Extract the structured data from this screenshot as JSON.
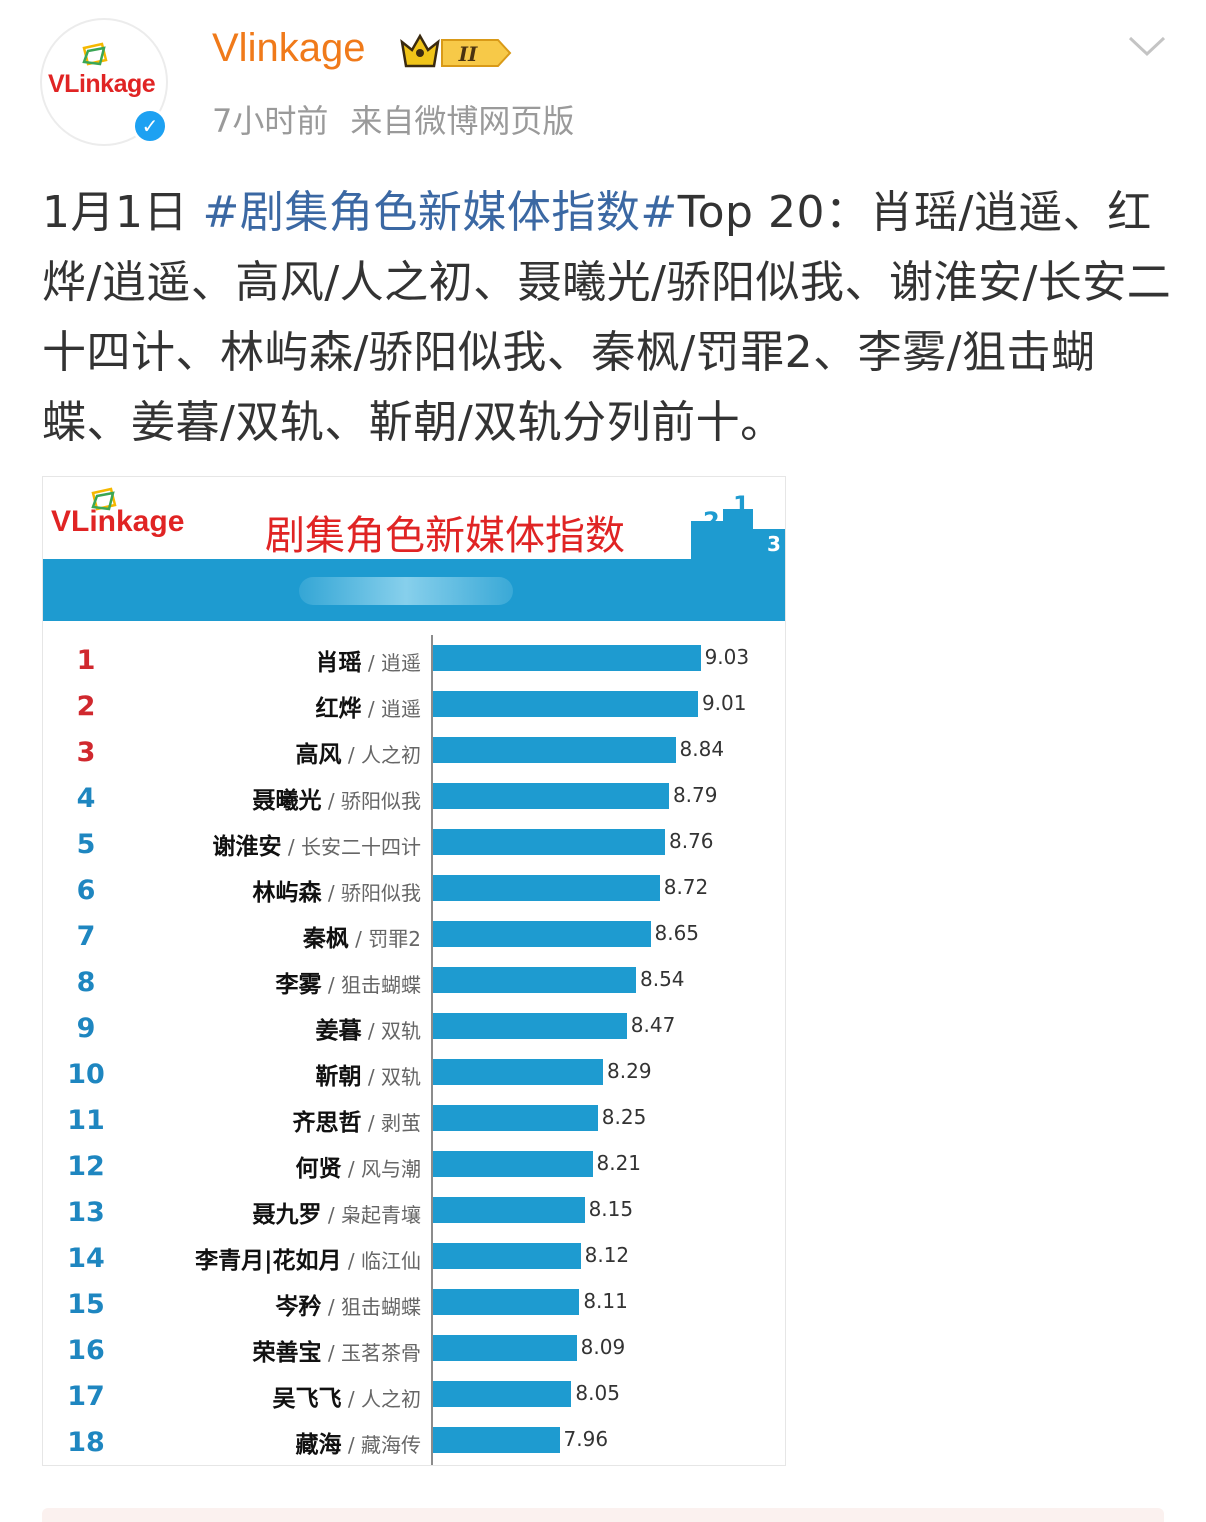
{
  "account": {
    "name": "Vlinkage",
    "avatar_logo": "VLinkage",
    "verified_icon": "verified-check-icon",
    "vip_level": "II"
  },
  "post": {
    "time": "7小时前",
    "source": "来自微博网页版",
    "text_prefix": "1月1日 ",
    "hashtag": "#剧集角色新媒体指数#",
    "text_body": "Top 20：肖瑶/逍遥、红烨/逍遥、高风/人之初、聂曦光/骄阳似我、谢淮安/长安二十四计、林屿森/骄阳似我、秦枫/罚罪2、李雾/狙击蝴蝶、姜暮/双轨、靳朝/双轨分列前十。"
  },
  "chart_card": {
    "logo": "VLinkage",
    "title": "剧集角色新媒体指数"
  },
  "chart_data": {
    "type": "bar",
    "orientation": "horizontal",
    "title": "剧集角色新媒体指数",
    "colors": {
      "bar": "#1e9bd0",
      "rank_top3": "#d0282e",
      "rank_other": "#1e86c0"
    },
    "xlim": [
      7.0,
      9.2
    ],
    "grid": false,
    "rows": [
      {
        "rank": "1",
        "role": "肖瑶",
        "show": "逍遥",
        "value": 9.03
      },
      {
        "rank": "2",
        "role": "红烨",
        "show": "逍遥",
        "value": 9.01
      },
      {
        "rank": "3",
        "role": "高风",
        "show": "人之初",
        "value": 8.84
      },
      {
        "rank": "4",
        "role": "聂曦光",
        "show": "骄阳似我",
        "value": 8.79
      },
      {
        "rank": "5",
        "role": "谢淮安",
        "show": "长安二十四计",
        "value": 8.76
      },
      {
        "rank": "6",
        "role": "林屿森",
        "show": "骄阳似我",
        "value": 8.72
      },
      {
        "rank": "7",
        "role": "秦枫",
        "show": "罚罪2",
        "value": 8.65
      },
      {
        "rank": "8",
        "role": "李雾",
        "show": "狙击蝴蝶",
        "value": 8.54
      },
      {
        "rank": "9",
        "role": "姜暮",
        "show": "双轨",
        "value": 8.47
      },
      {
        "rank": "10",
        "role": "靳朝",
        "show": "双轨",
        "value": 8.29
      },
      {
        "rank": "11",
        "role": "齐思哲",
        "show": "剥茧",
        "value": 8.25
      },
      {
        "rank": "12",
        "role": "何贤",
        "show": "风与潮",
        "value": 8.21
      },
      {
        "rank": "13",
        "role": "聂九罗",
        "show": "枭起青壤",
        "value": 8.15
      },
      {
        "rank": "14",
        "role": "李青月|花如月",
        "show": "临江仙",
        "value": 8.12
      },
      {
        "rank": "15",
        "role": "岑矜",
        "show": "狙击蝴蝶",
        "value": 8.11
      },
      {
        "rank": "16",
        "role": "荣善宝",
        "show": "玉茗茶骨",
        "value": 8.09
      },
      {
        "rank": "17",
        "role": "吴飞飞",
        "show": "人之初",
        "value": 8.05
      },
      {
        "rank": "18",
        "role": "藏海",
        "show": "藏海传",
        "value": 7.96
      }
    ]
  }
}
